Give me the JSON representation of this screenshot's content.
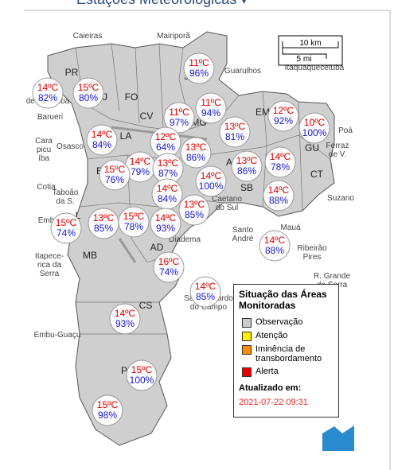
{
  "title": "Estações Meteorológicas ▾",
  "scale": {
    "km": "10 km",
    "mi": "5 mi"
  },
  "places": [
    {
      "lines": [
        "Caieiras"
      ]
    },
    {
      "lines": [
        "Mairiporã"
      ]
    },
    {
      "lines": [
        "Guarulhos"
      ]
    },
    {
      "lines": [
        "Itaquaquecetuba"
      ]
    },
    {
      "lines": [
        "Barueri"
      ]
    },
    {
      "lines": [
        "Osasco"
      ]
    },
    {
      "lines": [
        "Cara",
        "picu",
        "íba"
      ]
    },
    {
      "lines": [
        "Cotia"
      ]
    },
    {
      "lines": [
        "Taboão",
        "da S."
      ]
    },
    {
      "lines": [
        "Emb"
      ]
    },
    {
      "lines": [
        "Itapece-",
        "rica da",
        "Serra"
      ]
    },
    {
      "lines": [
        "Embu-Guaçu"
      ]
    },
    {
      "lines": [
        "Diadema"
      ]
    },
    {
      "lines": [
        "Santo",
        "André"
      ]
    },
    {
      "lines": [
        "Mauá"
      ]
    },
    {
      "lines": [
        "Ribeirão",
        "Pires"
      ]
    },
    {
      "lines": [
        "Suzano"
      ]
    },
    {
      "lines": [
        "Poá"
      ]
    },
    {
      "lines": [
        "Ferraz",
        "de V."
      ]
    },
    {
      "lines": [
        "R. Grande",
        "da Serra"
      ]
    },
    {
      "lines": [
        "São Bernardo",
        "do Campo"
      ]
    },
    {
      "lines": [
        "Caetano",
        "do Sul"
      ]
    },
    {
      "lines": [
        "de Parnaíba"
      ]
    }
  ],
  "regions": [
    "PR",
    "PJ",
    "FO",
    "CV",
    "JT",
    "MG",
    "EM",
    "LA",
    "GU",
    "CT",
    "SB",
    "AD",
    "L",
    "MB",
    "CS",
    "P",
    "A",
    "B"
  ],
  "stations": [
    {
      "temperature": "14ºC",
      "humidity": "82%"
    },
    {
      "temperature": "15ºC",
      "humidity": "80%"
    },
    {
      "temperature": "11ºC",
      "humidity": "96%"
    },
    {
      "temperature": "11ºC",
      "humidity": "94%"
    },
    {
      "temperature": "11ºC",
      "humidity": "97%"
    },
    {
      "temperature": "12ºC",
      "humidity": "92%"
    },
    {
      "temperature": "10ºC",
      "humidity": "100%"
    },
    {
      "temperature": "13ºC",
      "humidity": "81%"
    },
    {
      "temperature": "14ºC",
      "humidity": "84%"
    },
    {
      "temperature": "12ºC",
      "humidity": "64%"
    },
    {
      "temperature": "13ºC",
      "humidity": "86%"
    },
    {
      "temperature": "14ºC",
      "humidity": "79%"
    },
    {
      "temperature": "13ºC",
      "humidity": "87%"
    },
    {
      "temperature": "15ºC",
      "humidity": "76%"
    },
    {
      "temperature": "13ºC",
      "humidity": "86%"
    },
    {
      "temperature": "14ºC",
      "humidity": "78%"
    },
    {
      "temperature": "14ºC",
      "humidity": "100%"
    },
    {
      "temperature": "14ºC",
      "humidity": "84%"
    },
    {
      "temperature": "14ºC",
      "humidity": "88%"
    },
    {
      "temperature": "13ºC",
      "humidity": "85%"
    },
    {
      "temperature": "15ºC",
      "humidity": "74%"
    },
    {
      "temperature": "13ºC",
      "humidity": "85%"
    },
    {
      "temperature": "15ºC",
      "humidity": "78%"
    },
    {
      "temperature": "14ºC",
      "humidity": "93%"
    },
    {
      "temperature": "14ºC",
      "humidity": "88%"
    },
    {
      "temperature": "16ºC",
      "humidity": "74%"
    },
    {
      "temperature": "14ºC",
      "humidity": "85%"
    },
    {
      "temperature": "14ºC",
      "humidity": "93%"
    },
    {
      "temperature": "15ºC",
      "humidity": "100%"
    },
    {
      "temperature": "15ºC",
      "humidity": "98%"
    }
  ],
  "legend": {
    "title": "Situação das Áreas Monitoradas",
    "items": [
      {
        "label": "Observação",
        "color": "#cccccc"
      },
      {
        "label": "Atenção",
        "color": "#ffee00"
      },
      {
        "label": "Iminência de transbordamento",
        "color": "#ff8c00"
      },
      {
        "label": "Alerta",
        "color": "#ee0000"
      }
    ],
    "updated_label": "Atualizado em:",
    "updated": "2021-07-22 09:31"
  }
}
